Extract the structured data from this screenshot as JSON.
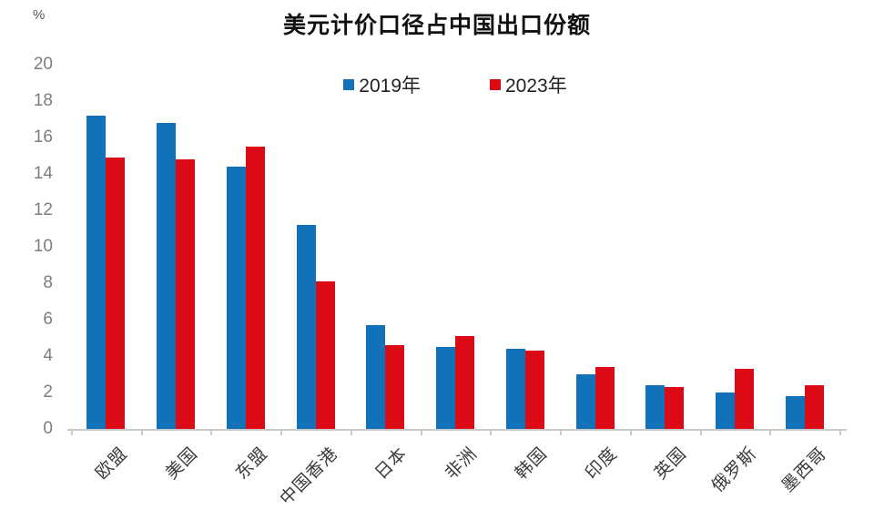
{
  "header": {
    "title": "美元计价口径占中国出口份额",
    "unit_label": "%"
  },
  "chart_data": {
    "type": "bar",
    "title": "美元计价口径占中国出口份额",
    "xlabel": "",
    "ylabel": "%",
    "ylim": [
      0,
      20
    ],
    "y_ticks": [
      0,
      2,
      4,
      6,
      8,
      10,
      12,
      14,
      16,
      18,
      20
    ],
    "grid": false,
    "legend_position": "top-center",
    "categories": [
      "欧盟",
      "美国",
      "东盟",
      "中国香港",
      "日本",
      "非洲",
      "韩国",
      "印度",
      "英国",
      "俄罗斯",
      "墨西哥"
    ],
    "series": [
      {
        "name": "2019年",
        "color": "#1272b9",
        "values": [
          17.2,
          16.8,
          14.4,
          11.2,
          5.7,
          4.5,
          4.4,
          3.0,
          2.4,
          2.0,
          1.8
        ]
      },
      {
        "name": "2023年",
        "color": "#db0a15",
        "values": [
          14.9,
          14.8,
          15.5,
          8.1,
          4.6,
          5.1,
          4.3,
          3.4,
          2.3,
          3.3,
          2.4
        ]
      }
    ],
    "axis_color": "#c9c9c9",
    "tick_label_color": "#7d7d7d",
    "category_label_color": "#3a3a3a"
  }
}
